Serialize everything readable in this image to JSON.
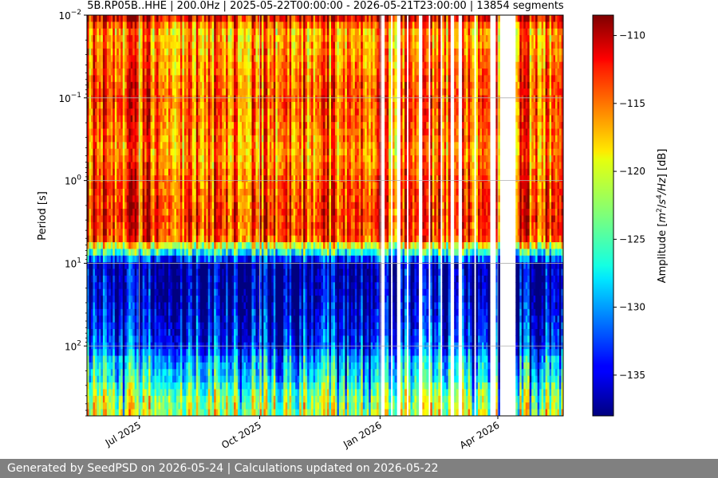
{
  "chart_data": {
    "type": "heatmap",
    "title": "5B.RP05B..HHE | 200.0Hz | 2025-05-22T00:00:00 - 2026-05-21T23:00:00 | 13854 segments",
    "ylabel": "Period [s]",
    "y_scale": "log",
    "y_inverted": true,
    "ylim": [
      0.01,
      700
    ],
    "y_ticks": [
      {
        "value": 0.01,
        "base": "10",
        "exp": "−2"
      },
      {
        "value": 0.1,
        "base": "10",
        "exp": "−1"
      },
      {
        "value": 1,
        "base": "10",
        "exp": "0"
      },
      {
        "value": 10,
        "base": "10",
        "exp": "1"
      },
      {
        "value": 100,
        "base": "10",
        "exp": "2"
      }
    ],
    "xlim": [
      "2025-05-22",
      "2026-05-21"
    ],
    "x_ticks": [
      {
        "date": "2025-07-01",
        "label": "Jul 2025"
      },
      {
        "date": "2025-10-01",
        "label": "Oct 2025"
      },
      {
        "date": "2026-01-01",
        "label": "Jan 2026"
      },
      {
        "date": "2026-04-01",
        "label": "Apr 2026"
      }
    ],
    "grid": true,
    "colorbar": {
      "label": "Amplitude [m²/s⁴/Hz] [dB]",
      "label_parts": {
        "pre": "Amplitude [",
        "m": "m",
        "exp1": "2",
        "mid": "/",
        "s": "s",
        "exp2": "4",
        "hz": "/Hz",
        "post": "] [dB]"
      },
      "range": [
        -138,
        -108.5
      ],
      "colormap": "jet",
      "ticks": [
        -110,
        -115,
        -120,
        -125,
        -130,
        -135
      ],
      "tick_labels": [
        "−110",
        "−115",
        "−120",
        "−125",
        "−130",
        "−135"
      ]
    },
    "data_gaps": [
      [
        "2026-01-01",
        "2026-01-05"
      ],
      [
        "2026-01-09",
        "2026-01-11"
      ],
      [
        "2026-01-14",
        "2026-01-16"
      ],
      [
        "2026-01-21",
        "2026-01-23"
      ],
      [
        "2026-01-31",
        "2026-02-02"
      ],
      [
        "2026-02-07",
        "2026-02-09"
      ],
      [
        "2026-02-16",
        "2026-02-18"
      ],
      [
        "2026-02-24",
        "2026-02-26"
      ],
      [
        "2026-03-02",
        "2026-03-04"
      ],
      [
        "2026-03-13",
        "2026-03-15"
      ],
      [
        "2026-03-26",
        "2026-03-30"
      ],
      [
        "2026-04-02",
        "2026-04-15"
      ]
    ],
    "amplitude_profile": {
      "period_s": [
        0.01,
        0.015,
        0.1,
        0.5,
        1,
        3,
        5,
        7,
        10,
        30,
        100,
        150,
        250,
        400,
        700
      ],
      "typical_dB": [
        -110,
        -117,
        -114,
        -116,
        -114,
        -113,
        -114,
        -124,
        -136,
        -135,
        -132,
        -128,
        -126,
        -122,
        -120
      ]
    }
  },
  "footer": {
    "text": "Generated by SeedPSD on 2026-05-24 | Calculations updated on 2026-05-22"
  }
}
